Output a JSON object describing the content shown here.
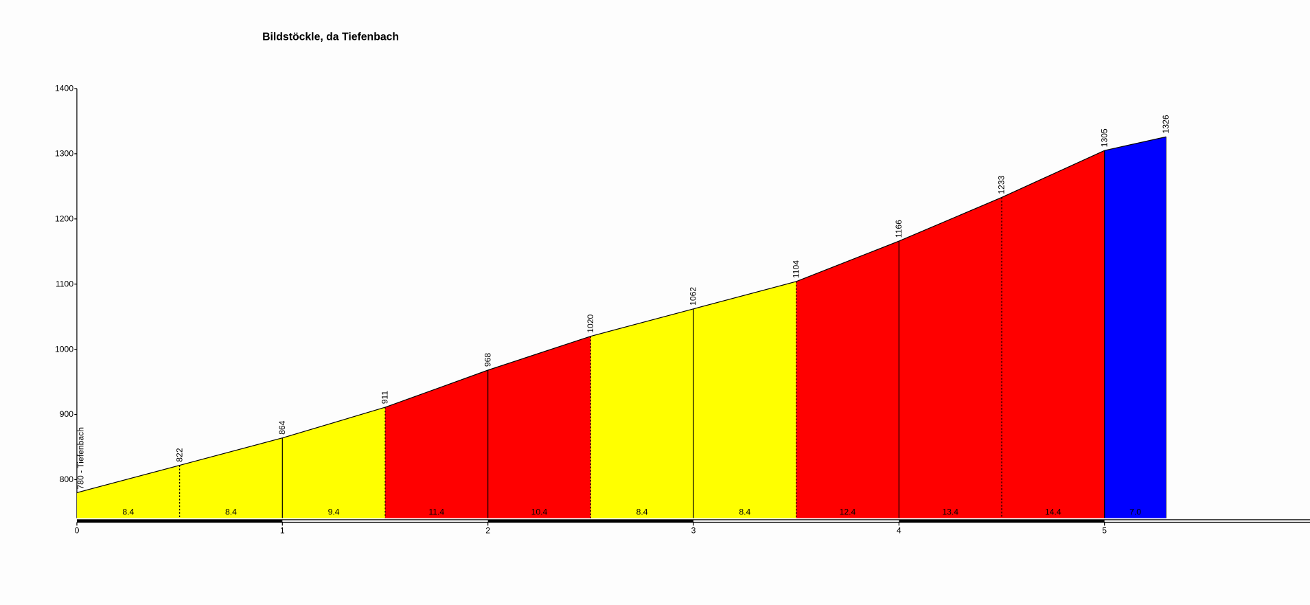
{
  "chart_data": {
    "type": "profile",
    "title": "Bildstöckle, da Tiefenbach",
    "x": [
      0,
      0.5,
      1,
      1.5,
      2,
      2.5,
      3,
      3.5,
      4,
      4.5,
      5,
      5.3
    ],
    "values": [
      780,
      822,
      864,
      911,
      968,
      1020,
      1062,
      1104,
      1166,
      1233,
      1305,
      1326
    ],
    "value_labels": [
      "780 - Tiefenbach",
      "822",
      "864",
      "911",
      "968",
      "1020",
      "1062",
      "1104",
      "1166",
      "1233",
      "1305",
      "1326"
    ],
    "gradients": [
      8.4,
      8.4,
      9.4,
      11.4,
      10.4,
      8.4,
      8.4,
      12.4,
      13.4,
      14.4,
      7.0
    ],
    "gradient_labels": [
      "8.4",
      "8.4",
      "9.4",
      "11.4",
      "10.4",
      "8.4",
      "8.4",
      "12.4",
      "13.4",
      "14.4",
      "7.0"
    ],
    "segment_colors": [
      "#ffff00",
      "#ffff00",
      "#ffff00",
      "#ff0000",
      "#ff0000",
      "#ffff00",
      "#ffff00",
      "#ff0000",
      "#ff0000",
      "#ff0000",
      "#0000ff"
    ],
    "xlim": [
      0,
      6
    ],
    "xticks": [
      0,
      1,
      2,
      3,
      4,
      5
    ],
    "ylim": [
      741,
      1400
    ],
    "yticks": [
      800,
      900,
      1000,
      1100,
      1200,
      1300,
      1400
    ]
  }
}
